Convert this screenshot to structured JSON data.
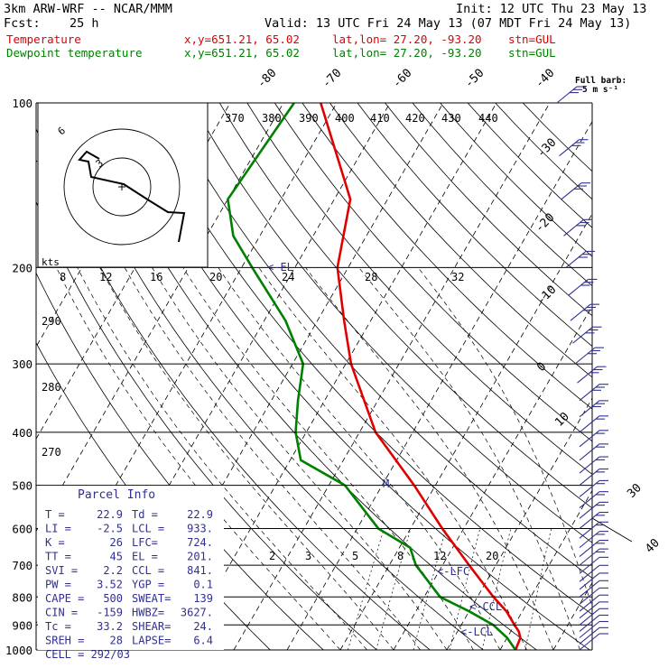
{
  "header": {
    "model": "3km ARW-WRF -- NCAR/MMM",
    "init": "Init: 12 UTC Thu 23 May 13",
    "fcst_label": "Fcst:",
    "fcst_value": "25 h",
    "valid": "Valid: 13 UTC Fri 24 May 13 (07 MDT Fri 24 May 13)",
    "temp_label": "Temperature",
    "dew_label": "Dewpoint temperature",
    "xy": "x,y=651.21, 65.02",
    "latlon": "lat,lon= 27.20, -93.20",
    "stn": "stn=GUL",
    "barb_note1": "Full barb:",
    "barb_note2": "5 m s⁻¹"
  },
  "colors": {
    "temperature": "#e00000",
    "dewpoint": "#008000",
    "wind": "#303090"
  },
  "chart_data": {
    "type": "skew-t log-p sounding",
    "ylabel_units": "hPa",
    "pressure_levels": [
      100,
      200,
      300,
      400,
      500,
      600,
      700,
      800,
      900,
      1000
    ],
    "pressure_level_labels": [
      "100",
      "200",
      "300",
      "400",
      "500",
      "600",
      "700",
      "800",
      "900",
      "1000"
    ],
    "isotherm_labels": [
      "-80",
      "-70",
      "-60",
      "-50",
      "-40",
      "-30",
      "-20",
      "-10",
      "0",
      "10",
      "30",
      "40"
    ],
    "theta_labels": [
      "370",
      "380",
      "390",
      "400",
      "410",
      "420",
      "430",
      "440",
      "290",
      "280",
      "270"
    ],
    "mixing_ratio_labels": [
      "2",
      "3",
      "5",
      "8",
      "12",
      "20"
    ],
    "temperature_profile": [
      [
        100,
        -73
      ],
      [
        150,
        -57
      ],
      [
        200,
        -52
      ],
      [
        250,
        -45
      ],
      [
        300,
        -39
      ],
      [
        400,
        -27
      ],
      [
        500,
        -14
      ],
      [
        600,
        -4
      ],
      [
        700,
        5
      ],
      [
        800,
        13
      ],
      [
        850,
        17
      ],
      [
        900,
        20
      ],
      [
        925,
        21.5
      ],
      [
        950,
        22.5
      ],
      [
        1000,
        22.9
      ]
    ],
    "dewpoint_profile": [
      [
        100,
        -78
      ],
      [
        150,
        -80
      ],
      [
        175,
        -75
      ],
      [
        200,
        -68
      ],
      [
        250,
        -56
      ],
      [
        300,
        -48
      ],
      [
        350,
        -45
      ],
      [
        400,
        -42
      ],
      [
        450,
        -38
      ],
      [
        500,
        -27
      ],
      [
        600,
        -16
      ],
      [
        650,
        -8
      ],
      [
        700,
        -5
      ],
      [
        800,
        3
      ],
      [
        850,
        10
      ],
      [
        900,
        16
      ],
      [
        950,
        20
      ],
      [
        1000,
        22.9
      ]
    ],
    "annotations": [
      "EL",
      "M",
      "LFC",
      "CCL",
      "LCL"
    ],
    "hodograph": {
      "ring_labels": [
        "3",
        "6"
      ],
      "speed_axis_label": "kts",
      "speed_labels": [
        "8",
        "12",
        "16",
        "20",
        "24",
        "28",
        "32"
      ]
    },
    "wind_barb_pressures": [
      100,
      125,
      150,
      175,
      200,
      225,
      250,
      275,
      300,
      325,
      350,
      375,
      400,
      425,
      450,
      475,
      500,
      525,
      550,
      575,
      600,
      625,
      650,
      675,
      700,
      725,
      750,
      775,
      800,
      825,
      850,
      875,
      900,
      925,
      950,
      975,
      1000
    ]
  },
  "parcel_info": {
    "title": "Parcel Info",
    "rows": [
      [
        "T  =",
        "22.9",
        "Td =",
        "22.9"
      ],
      [
        "LI =",
        "-2.5",
        "LCL =",
        "933."
      ],
      [
        "K  =",
        "26",
        "LFC=",
        "724."
      ],
      [
        "TT =",
        "45",
        "EL  =",
        "201."
      ],
      [
        "SVI =",
        "2.2",
        "CCL =",
        "841."
      ],
      [
        "PW =",
        "3.52",
        "YGP =",
        "0.1"
      ],
      [
        "CAPE =",
        "500",
        "SWEAT=",
        "139"
      ],
      [
        "CIN =",
        "-159",
        "HWBZ=",
        "3627."
      ],
      [
        "Tc  =",
        "33.2",
        "SHEAR=",
        "24."
      ],
      [
        "SREH =",
        "28",
        "LAPSE=",
        "6.4"
      ],
      [
        "CELL = 292/03",
        "",
        "",
        ""
      ]
    ]
  }
}
